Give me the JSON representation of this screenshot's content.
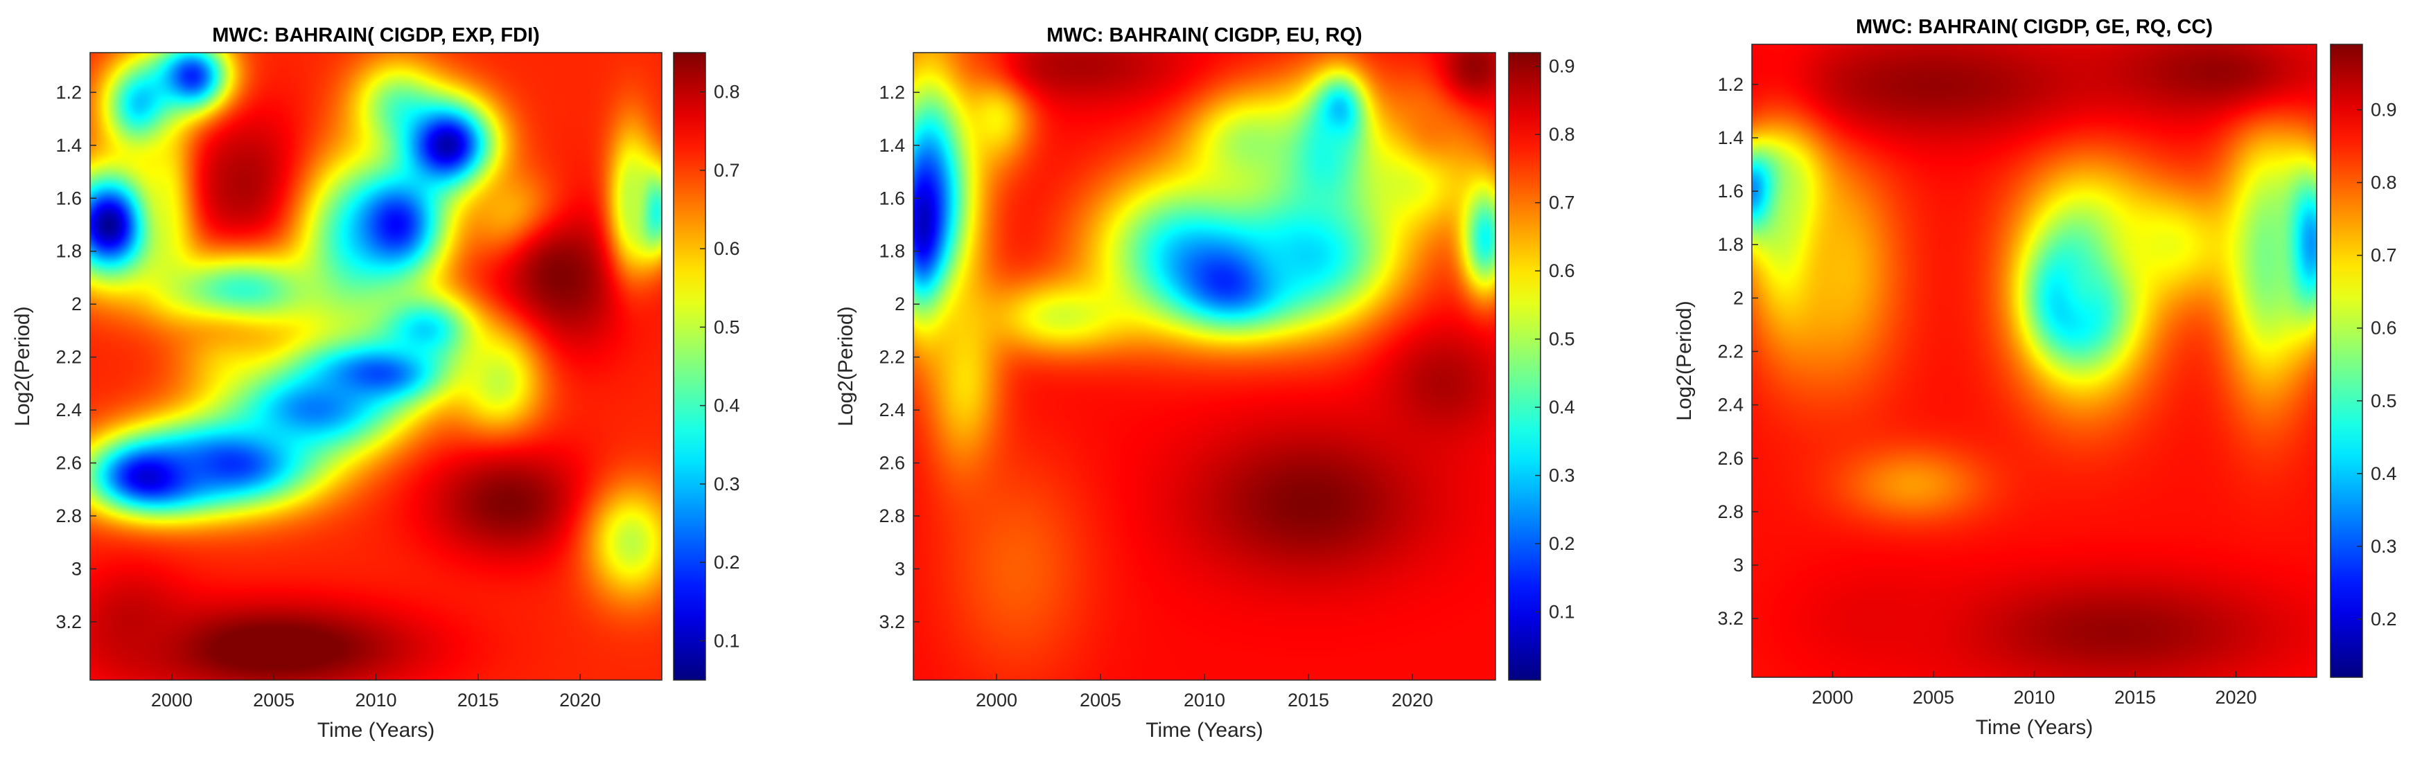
{
  "colormap": "jet",
  "colors": {
    "frame": "#262626",
    "background": "#ffffff"
  },
  "chart_data": [
    {
      "type": "heatmap",
      "title": "MWC: BAHRAIN( CIGDP, EXP,  FDI)",
      "xlabel": "Time (Years)",
      "ylabel": "Log2(Period)",
      "xlim": [
        1996,
        2024
      ],
      "ylim": [
        1.05,
        3.42
      ],
      "y_reversed": true,
      "xticks": [
        "2000",
        "2005",
        "2010",
        "2015",
        "2020"
      ],
      "yticks": [
        "1.2",
        "1.4",
        "1.6",
        "1.8",
        "2",
        "2.2",
        "2.4",
        "2.6",
        "2.8",
        "3",
        "3.2"
      ],
      "clim": [
        0.05,
        0.85
      ],
      "colorbar_ticks": [
        "0.1",
        "0.2",
        "0.3",
        "0.4",
        "0.5",
        "0.6",
        "0.7",
        "0.8"
      ],
      "base": 0.72,
      "features": [
        {
          "x": 1997,
          "y": 1.7,
          "sx": 1.6,
          "sy": 0.14,
          "v": 0.05
        },
        {
          "x": 1998.5,
          "y": 1.25,
          "sx": 1.3,
          "sy": 0.12,
          "v": 0.3
        },
        {
          "x": 2001,
          "y": 1.15,
          "sx": 1.3,
          "sy": 0.1,
          "v": 0.12
        },
        {
          "x": 2000,
          "y": 1.6,
          "sx": 1.0,
          "sy": 0.2,
          "v": 0.45
        },
        {
          "x": 2004,
          "y": 1.55,
          "sx": 2.5,
          "sy": 0.2,
          "v": 0.82
        },
        {
          "x": 2003.5,
          "y": 1.95,
          "sx": 3.0,
          "sy": 0.1,
          "v": 0.38
        },
        {
          "x": 2002.5,
          "y": 2.2,
          "sx": 1.6,
          "sy": 0.1,
          "v": 0.62
        },
        {
          "x": 1999,
          "y": 2.65,
          "sx": 2.2,
          "sy": 0.1,
          "v": 0.08
        },
        {
          "x": 2003,
          "y": 2.6,
          "sx": 3.0,
          "sy": 0.12,
          "v": 0.18
        },
        {
          "x": 2007,
          "y": 2.4,
          "sx": 3.0,
          "sy": 0.12,
          "v": 0.25
        },
        {
          "x": 2010,
          "y": 2.25,
          "sx": 2.5,
          "sy": 0.09,
          "v": 0.15
        },
        {
          "x": 2012.5,
          "y": 2.1,
          "sx": 2.0,
          "sy": 0.1,
          "v": 0.3
        },
        {
          "x": 2008.5,
          "y": 1.8,
          "sx": 1.8,
          "sy": 0.25,
          "v": 0.45
        },
        {
          "x": 2011,
          "y": 1.7,
          "sx": 1.8,
          "sy": 0.15,
          "v": 0.15
        },
        {
          "x": 2011,
          "y": 1.25,
          "sx": 1.5,
          "sy": 0.12,
          "v": 0.45
        },
        {
          "x": 2013.5,
          "y": 1.4,
          "sx": 1.6,
          "sy": 0.12,
          "v": 0.08
        },
        {
          "x": 2017,
          "y": 1.7,
          "sx": 1.5,
          "sy": 0.12,
          "v": 0.5
        },
        {
          "x": 2019,
          "y": 1.9,
          "sx": 2.5,
          "sy": 0.2,
          "v": 0.85
        },
        {
          "x": 2016,
          "y": 2.3,
          "sx": 1.5,
          "sy": 0.15,
          "v": 0.5
        },
        {
          "x": 2023.5,
          "y": 1.65,
          "sx": 0.8,
          "sy": 0.12,
          "v": 0.3
        },
        {
          "x": 2022.5,
          "y": 1.6,
          "sx": 0.8,
          "sy": 0.2,
          "v": 0.5
        },
        {
          "x": 2016.5,
          "y": 2.75,
          "sx": 2.8,
          "sy": 0.15,
          "v": 0.85
        },
        {
          "x": 2022.5,
          "y": 2.9,
          "sx": 1.5,
          "sy": 0.15,
          "v": 0.5
        },
        {
          "x": 2005,
          "y": 3.3,
          "sx": 5.0,
          "sy": 0.12,
          "v": 0.88
        },
        {
          "x": 1998,
          "y": 3.2,
          "sx": 2.0,
          "sy": 0.15,
          "v": 0.8
        }
      ]
    },
    {
      "type": "heatmap",
      "title": "MWC:  BAHRAIN( CIGDP, EU, RQ)",
      "xlabel": "Time (Years)",
      "ylabel": "Log2(Period)",
      "xlim": [
        1996,
        2024
      ],
      "ylim": [
        1.05,
        3.42
      ],
      "y_reversed": true,
      "xticks": [
        "2000",
        "2005",
        "2010",
        "2015",
        "2020"
      ],
      "yticks": [
        "1.2",
        "1.4",
        "1.6",
        "1.8",
        "2",
        "2.2",
        "2.4",
        "2.6",
        "2.8",
        "3",
        "3.2"
      ],
      "clim": [
        0.0,
        0.92
      ],
      "colorbar_ticks": [
        "0.1",
        "0.2",
        "0.3",
        "0.4",
        "0.5",
        "0.6",
        "0.7",
        "0.8",
        "0.9"
      ],
      "base": 0.8,
      "features": [
        {
          "x": 1997,
          "y": 1.55,
          "sx": 1.5,
          "sy": 0.35,
          "v": 0.3
        },
        {
          "x": 1996.5,
          "y": 1.7,
          "sx": 0.8,
          "sy": 0.2,
          "v": 0.05
        },
        {
          "x": 2000,
          "y": 1.25,
          "sx": 1.2,
          "sy": 0.15,
          "v": 0.55
        },
        {
          "x": 1998.5,
          "y": 2.3,
          "sx": 1.2,
          "sy": 0.25,
          "v": 0.6
        },
        {
          "x": 2003,
          "y": 2.05,
          "sx": 2.5,
          "sy": 0.1,
          "v": 0.55
        },
        {
          "x": 2009,
          "y": 1.8,
          "sx": 3.0,
          "sy": 0.2,
          "v": 0.35
        },
        {
          "x": 2011.5,
          "y": 1.9,
          "sx": 2.0,
          "sy": 0.12,
          "v": 0.05
        },
        {
          "x": 2015,
          "y": 1.8,
          "sx": 3.0,
          "sy": 0.2,
          "v": 0.3
        },
        {
          "x": 2012,
          "y": 1.4,
          "sx": 2.0,
          "sy": 0.15,
          "v": 0.5
        },
        {
          "x": 2016.5,
          "y": 1.3,
          "sx": 0.8,
          "sy": 0.1,
          "v": 0.1
        },
        {
          "x": 2016,
          "y": 1.45,
          "sx": 1.8,
          "sy": 0.2,
          "v": 0.35
        },
        {
          "x": 2020,
          "y": 1.5,
          "sx": 2.0,
          "sy": 0.15,
          "v": 0.5
        },
        {
          "x": 2021,
          "y": 1.3,
          "sx": 1.5,
          "sy": 0.15,
          "v": 0.7
        },
        {
          "x": 2023.5,
          "y": 1.75,
          "sx": 0.8,
          "sy": 0.15,
          "v": 0.35
        },
        {
          "x": 2015,
          "y": 2.75,
          "sx": 4.0,
          "sy": 0.2,
          "v": 0.92
        },
        {
          "x": 2021.5,
          "y": 2.3,
          "sx": 2.0,
          "sy": 0.15,
          "v": 0.88
        },
        {
          "x": 2004,
          "y": 1.1,
          "sx": 3.5,
          "sy": 0.1,
          "v": 0.88
        },
        {
          "x": 2023,
          "y": 1.1,
          "sx": 1.2,
          "sy": 0.1,
          "v": 0.9
        },
        {
          "x": 2001,
          "y": 3.0,
          "sx": 2.5,
          "sy": 0.3,
          "v": 0.72
        }
      ]
    },
    {
      "type": "heatmap",
      "title": "MWC:  BAHRAIN( CIGDP, GE,  RQ, CC)",
      "xlabel": "Time (Years)",
      "ylabel": "Log2(Period)",
      "xlim": [
        1996,
        2024
      ],
      "ylim": [
        1.05,
        3.42
      ],
      "y_reversed": true,
      "xticks": [
        "2000",
        "2005",
        "2010",
        "2015",
        "2020"
      ],
      "yticks": [
        "1.2",
        "1.4",
        "1.6",
        "1.8",
        "2",
        "2.2",
        "2.4",
        "2.6",
        "2.8",
        "3",
        "3.2"
      ],
      "clim": [
        0.12,
        0.99
      ],
      "colorbar_ticks": [
        "0.2",
        "0.3",
        "0.4",
        "0.5",
        "0.6",
        "0.7",
        "0.8",
        "0.9"
      ],
      "base": 0.87,
      "features": [
        {
          "x": 1996.5,
          "y": 1.6,
          "sx": 1.2,
          "sy": 0.12,
          "v": 0.12
        },
        {
          "x": 1998,
          "y": 1.7,
          "sx": 1.5,
          "sy": 0.3,
          "v": 0.55
        },
        {
          "x": 2000.5,
          "y": 1.9,
          "sx": 2.0,
          "sy": 0.3,
          "v": 0.72
        },
        {
          "x": 2012,
          "y": 2.0,
          "sx": 1.3,
          "sy": 0.13,
          "v": 0.1
        },
        {
          "x": 2012.5,
          "y": 1.95,
          "sx": 2.3,
          "sy": 0.28,
          "v": 0.45
        },
        {
          "x": 2016.5,
          "y": 1.8,
          "sx": 2.5,
          "sy": 0.15,
          "v": 0.65
        },
        {
          "x": 2023.5,
          "y": 1.8,
          "sx": 1.0,
          "sy": 0.2,
          "v": 0.25
        },
        {
          "x": 2021.5,
          "y": 1.85,
          "sx": 1.5,
          "sy": 0.35,
          "v": 0.55
        },
        {
          "x": 2004,
          "y": 2.7,
          "sx": 2.5,
          "sy": 0.1,
          "v": 0.75
        },
        {
          "x": 2005,
          "y": 1.2,
          "sx": 6.0,
          "sy": 0.15,
          "v": 0.97
        },
        {
          "x": 2019,
          "y": 1.15,
          "sx": 4.0,
          "sy": 0.12,
          "v": 0.97
        },
        {
          "x": 2014,
          "y": 3.25,
          "sx": 6.0,
          "sy": 0.15,
          "v": 0.97
        },
        {
          "x": 2002,
          "y": 3.2,
          "sx": 3.0,
          "sy": 0.15,
          "v": 0.9
        }
      ]
    }
  ]
}
